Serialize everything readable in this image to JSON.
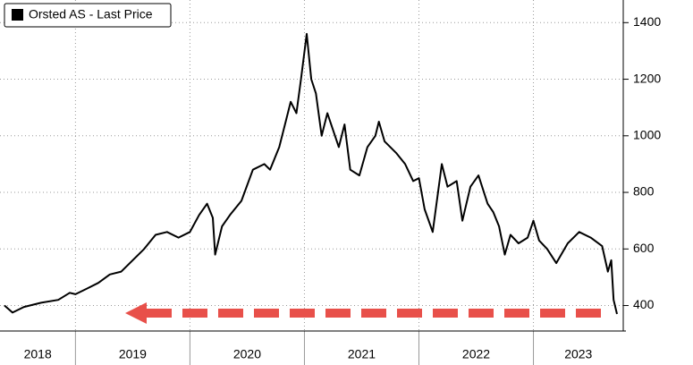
{
  "chart_data": {
    "type": "line",
    "series": [
      {
        "name": "Orsted AS - Last Price",
        "color": "#000000",
        "x": [
          2018.38,
          2018.45,
          2018.55,
          2018.7,
          2018.85,
          2018.95,
          2019.0,
          2019.1,
          2019.2,
          2019.3,
          2019.4,
          2019.5,
          2019.6,
          2019.7,
          2019.8,
          2019.9,
          2020.0,
          2020.08,
          2020.15,
          2020.2,
          2020.22,
          2020.28,
          2020.35,
          2020.45,
          2020.55,
          2020.65,
          2020.7,
          2020.78,
          2020.83,
          2020.88,
          2020.93,
          2020.97,
          2021.02,
          2021.06,
          2021.1,
          2021.15,
          2021.2,
          2021.3,
          2021.35,
          2021.4,
          2021.48,
          2021.55,
          2021.62,
          2021.65,
          2021.7,
          2021.8,
          2021.88,
          2021.95,
          2022.0,
          2022.05,
          2022.12,
          2022.2,
          2022.25,
          2022.33,
          2022.38,
          2022.45,
          2022.52,
          2022.6,
          2022.65,
          2022.7,
          2022.75,
          2022.8,
          2022.87,
          2022.95,
          2023.0,
          2023.05,
          2023.12,
          2023.2,
          2023.3,
          2023.4,
          2023.5,
          2023.6,
          2023.65,
          2023.68,
          2023.7,
          2023.73
        ],
        "values": [
          400,
          375,
          395,
          410,
          420,
          445,
          440,
          460,
          480,
          510,
          520,
          560,
          600,
          650,
          660,
          640,
          660,
          720,
          760,
          710,
          580,
          680,
          720,
          770,
          880,
          900,
          880,
          960,
          1040,
          1120,
          1080,
          1200,
          1360,
          1200,
          1150,
          1000,
          1080,
          960,
          1040,
          880,
          860,
          960,
          1000,
          1050,
          980,
          940,
          900,
          840,
          850,
          740,
          660,
          900,
          820,
          840,
          700,
          820,
          860,
          760,
          730,
          680,
          580,
          650,
          620,
          640,
          700,
          630,
          600,
          550,
          620,
          660,
          640,
          610,
          520,
          560,
          420,
          370
        ]
      }
    ],
    "xlim": [
      2018.38,
      2023.73
    ],
    "xticks": [
      2019,
      2020,
      2021,
      2022,
      2023
    ],
    "year_labels": [
      2018,
      2019,
      2020,
      2021,
      2022,
      2023
    ],
    "ylim": [
      310,
      1480
    ],
    "yticks": [
      400,
      600,
      800,
      1000,
      1200,
      1400
    ],
    "grid": true
  }
}
